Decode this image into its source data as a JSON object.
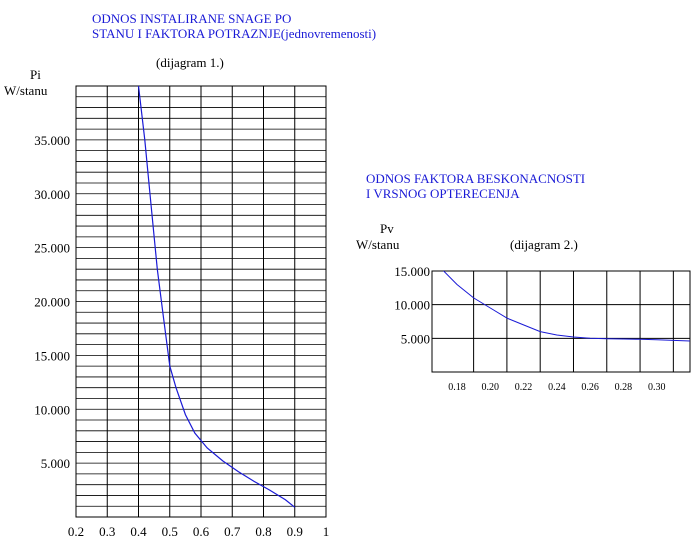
{
  "chart_data": [
    {
      "type": "line",
      "title_lines": [
        "ODNOS INSTALIRANE SNAGE PO",
        "STANU I FAKTORA POTRAZNJE(jednovremenosti)"
      ],
      "subtitle": "(dijagram 1.)",
      "ylabel_lines": [
        "Pi",
        "W/stanu"
      ],
      "xlabel": "",
      "x_ticks": [
        "0.2",
        "0.3",
        "0.4",
        "0.5",
        "0.6",
        "0.7",
        "0.8",
        "0.9",
        "1"
      ],
      "y_ticks": [
        "35.000",
        "30.000",
        "25.000",
        "20.000",
        "15.000",
        "10.000",
        "5.000"
      ],
      "xlim": [
        0.2,
        1.0
      ],
      "ylim": [
        0,
        40000
      ],
      "grid": true,
      "series": [
        {
          "color": "#1a1ad6",
          "x": [
            0.4,
            0.42,
            0.44,
            0.46,
            0.48,
            0.5,
            0.52,
            0.55,
            0.58,
            0.62,
            0.67,
            0.72,
            0.77,
            0.82,
            0.87,
            0.9
          ],
          "y": [
            40000,
            35000,
            29000,
            23000,
            18500,
            14000,
            12000,
            9500,
            7800,
            6400,
            5200,
            4200,
            3300,
            2500,
            1600,
            900
          ]
        }
      ]
    },
    {
      "type": "line",
      "title_lines": [
        "ODNOS FAKTORA BESKONACNOSTI",
        "I VRSNOG OPTERECENJA"
      ],
      "subtitle": "(dijagram 2.)",
      "ylabel_lines": [
        "Pv",
        "W/stanu"
      ],
      "xlabel": "",
      "x_ticks": [
        "0.18",
        "0.20",
        "0.22",
        "0.24",
        "0.26",
        "0.28",
        "0.30"
      ],
      "y_ticks": [
        "15.000",
        "10.000",
        "5.000"
      ],
      "xlim": [
        0.165,
        0.32
      ],
      "ylim": [
        0,
        15000
      ],
      "grid": true,
      "series": [
        {
          "color": "#1a1ad6",
          "x": [
            0.17,
            0.18,
            0.19,
            0.2,
            0.21,
            0.22,
            0.23,
            0.24,
            0.25,
            0.26,
            0.27,
            0.28,
            0.29,
            0.3,
            0.31,
            0.32
          ],
          "y": [
            15500,
            13000,
            11000,
            9500,
            8000,
            7000,
            6000,
            5500,
            5200,
            5000,
            4950,
            4900,
            4850,
            4800,
            4700,
            4600
          ]
        }
      ]
    }
  ]
}
